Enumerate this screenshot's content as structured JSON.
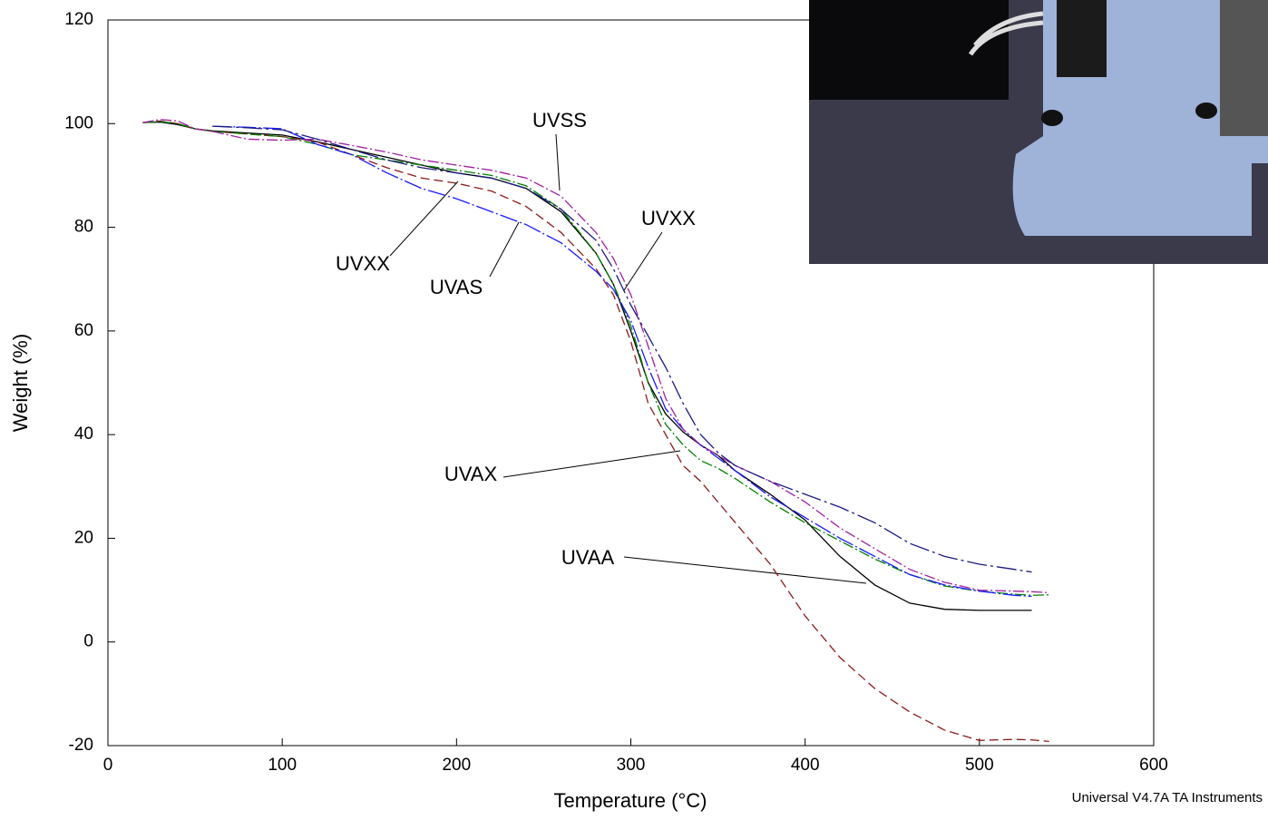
{
  "chart_data": {
    "type": "line",
    "x_label": "Temperature (°C)",
    "y_label": "Weight (%)",
    "footer": "Universal V4.7A TA Instruments",
    "x": [
      20,
      30,
      40,
      50,
      60,
      80,
      100,
      120,
      140,
      160,
      180,
      200,
      220,
      240,
      260,
      280,
      290,
      300,
      310,
      320,
      330,
      340,
      350,
      360,
      380,
      400,
      420,
      440,
      460,
      480,
      500,
      520,
      530,
      540
    ],
    "series": [
      {
        "name": "UVAA",
        "color": "#000000",
        "values": [
          100.2,
          100.3,
          99.8,
          99,
          98.6,
          98.2,
          97.8,
          96.5,
          95,
          93.5,
          92,
          90.5,
          89.5,
          87.5,
          83,
          75,
          69,
          60,
          50,
          44,
          40.5,
          38,
          36,
          33,
          28.5,
          23.5,
          16.5,
          11,
          7.5,
          6.3,
          6.1,
          6.1,
          6.1,
          null
        ]
      },
      {
        "name": "UVXX",
        "color": "#8b1a1a",
        "values": [
          100.2,
          100.5,
          100,
          99,
          98.5,
          98,
          97.5,
          96.5,
          94,
          91.5,
          89.5,
          88.5,
          87,
          84,
          79,
          72,
          67,
          58,
          46,
          40,
          34,
          31,
          27,
          23,
          15,
          5,
          -3,
          -9,
          -13.5,
          -17,
          -19,
          -18.8,
          -18.9,
          -19.2
        ]
      },
      {
        "name": "UVAX",
        "color": "#008000",
        "values": [
          100.2,
          100.4,
          100,
          99,
          98.5,
          98,
          97.5,
          96,
          94,
          93,
          92,
          91,
          90,
          88,
          83.5,
          75,
          69,
          61,
          50,
          42,
          38,
          35,
          33.5,
          31.5,
          27,
          23,
          19.5,
          16,
          13,
          10.8,
          9.8,
          9.2,
          9,
          9.1
        ]
      },
      {
        "name": "UVAS",
        "color": "#1a1aff",
        "values": [
          null,
          null,
          null,
          null,
          99.5,
          99.3,
          99,
          96,
          94,
          90.5,
          87.5,
          85.5,
          83,
          80.5,
          77,
          71.5,
          68,
          62,
          53,
          45,
          41,
          38,
          35.5,
          33,
          28,
          24,
          20,
          16.5,
          13,
          11,
          9.8,
          9,
          8.8,
          null
        ]
      },
      {
        "name": "UVSS",
        "color": "#a020a0",
        "values": [
          100.2,
          100.8,
          100.5,
          99,
          98.5,
          97,
          96.8,
          97,
          95.8,
          94.5,
          93,
          92,
          91,
          89.5,
          86,
          79,
          74,
          67,
          57,
          47,
          41,
          38,
          36,
          34,
          31,
          27,
          22,
          18,
          14,
          11.5,
          10,
          9.8,
          9.7,
          9.5
        ]
      },
      {
        "name": "UVXX",
        "color": "#1a1a80",
        "values": [
          null,
          null,
          null,
          null,
          99.5,
          99.2,
          98.8,
          97,
          95,
          93,
          91.5,
          90.5,
          89.5,
          87.5,
          83.5,
          77.5,
          72,
          65,
          59,
          53,
          46,
          40,
          36.5,
          34,
          31,
          28.5,
          26,
          23,
          19,
          16.5,
          15,
          14,
          13.5,
          null
        ]
      }
    ],
    "xlim": [
      0,
      600
    ],
    "xticks": [
      0,
      100,
      200,
      300,
      400,
      500,
      600
    ],
    "ylim": [
      -20,
      120
    ],
    "yticks": [
      -20,
      0,
      20,
      40,
      60,
      80,
      100,
      120
    ]
  }
}
